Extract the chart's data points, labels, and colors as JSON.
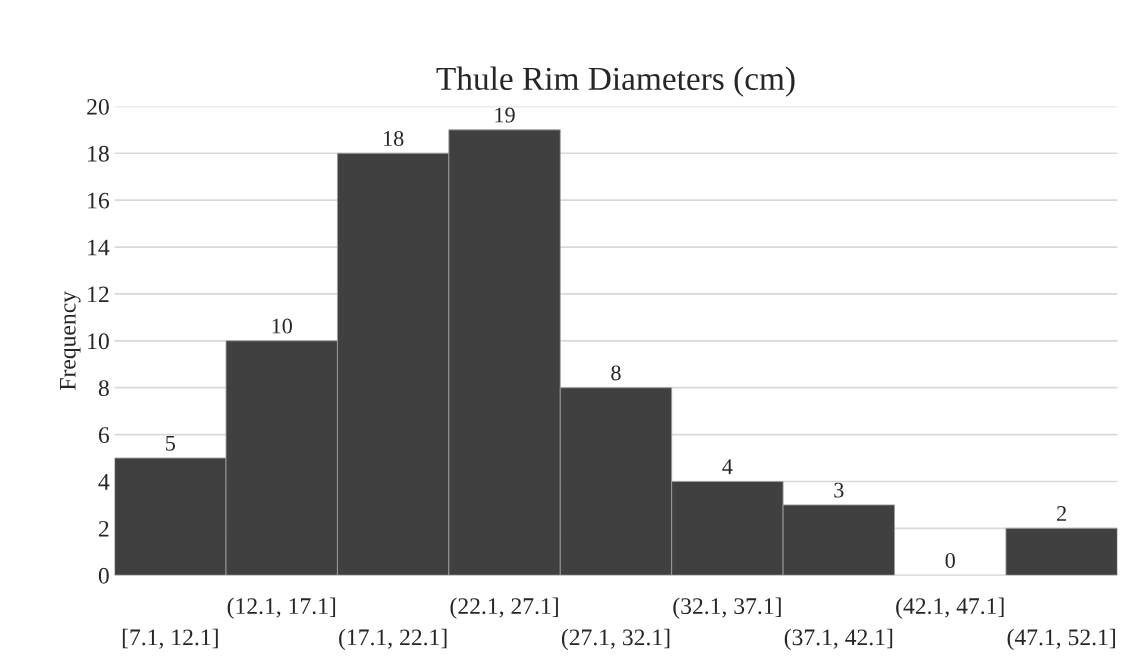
{
  "chart_data": {
    "type": "bar",
    "title": "Thule Rim Diameters (cm)",
    "ylabel": "Frequency",
    "categories": [
      "[7.1, 12.1]",
      "(12.1, 17.1]",
      "(17.1, 22.1]",
      "(22.1, 27.1]",
      "(27.1, 32.1]",
      "(32.1, 37.1]",
      "(37.1, 42.1]",
      "(42.1, 47.1]",
      "(47.1, 52.1]"
    ],
    "values": [
      5,
      10,
      18,
      19,
      8,
      4,
      3,
      0,
      2
    ],
    "color": "#404040",
    "ylim": [
      0,
      20
    ],
    "yticks": [
      0,
      2,
      4,
      6,
      8,
      10,
      12,
      14,
      16,
      18,
      20
    ],
    "grid": "y",
    "data_labels": true,
    "legend": false
  }
}
